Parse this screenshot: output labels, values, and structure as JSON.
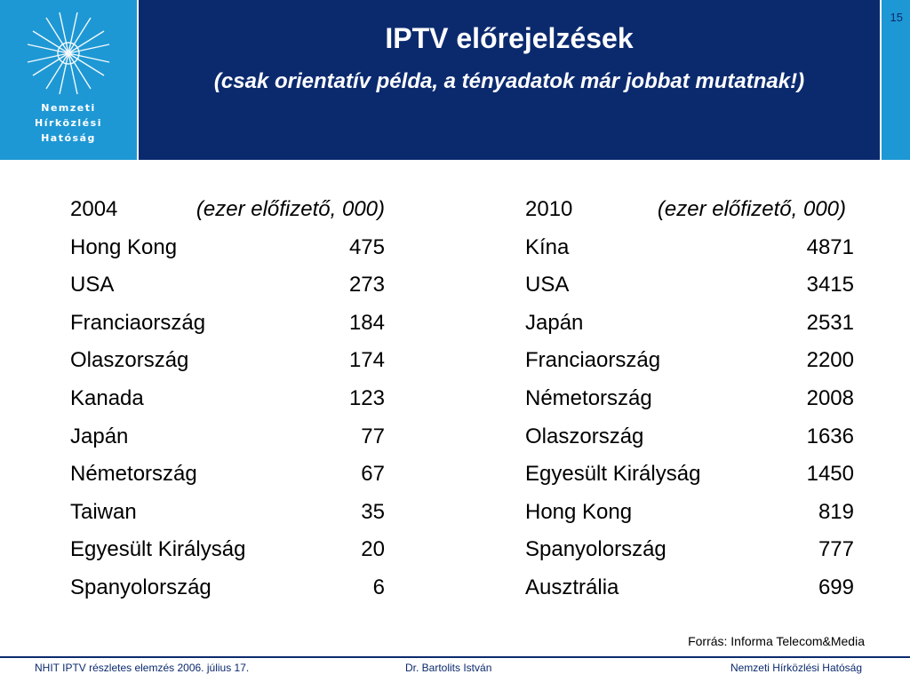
{
  "logo": {
    "lines": [
      "Nemzeti",
      "Hírközlési",
      "Hatóság"
    ],
    "accent": "#1e98d4"
  },
  "header": {
    "title": "IPTV előrejelzések",
    "subtitle": "(csak orientatív példa, a tényadatok már jobbat mutatnak!)",
    "slide_number": "15",
    "background": "#0b2a6e"
  },
  "tables": [
    {
      "year": "2004",
      "unit": "(ezer előfizető, 000)",
      "rows": [
        {
          "country": "Hong Kong",
          "value": "475"
        },
        {
          "country": "USA",
          "value": "273"
        },
        {
          "country": "Franciaország",
          "value": "184"
        },
        {
          "country": "Olaszország",
          "value": "174"
        },
        {
          "country": "Kanada",
          "value": "123"
        },
        {
          "country": "Japán",
          "value": "77"
        },
        {
          "country": "Németország",
          "value": "67"
        },
        {
          "country": "Taiwan",
          "value": "35"
        },
        {
          "country": "Egyesült Királyság",
          "value": "20"
        },
        {
          "country": "Spanyolország",
          "value": "6"
        }
      ]
    },
    {
      "year": "2010",
      "unit": "(ezer előfizető, 000)",
      "rows": [
        {
          "country": "Kína",
          "value": "4871"
        },
        {
          "country": "USA",
          "value": "3415"
        },
        {
          "country": "Japán",
          "value": "2531"
        },
        {
          "country": "Franciaország",
          "value": "2200"
        },
        {
          "country": "Németország",
          "value": "2008"
        },
        {
          "country": "Olaszország",
          "value": "1636"
        },
        {
          "country": "Egyesült Királyság",
          "value": "1450"
        },
        {
          "country": "Hong Kong",
          "value": "819"
        },
        {
          "country": "Spanyolország",
          "value": "777"
        },
        {
          "country": "Ausztrália",
          "value": "699"
        }
      ]
    }
  ],
  "source": "Forrás: Informa Telecom&Media",
  "footer": {
    "left": "NHIT  IPTV részletes elemzés 2006. július 17.",
    "center": "Dr. Bartolits István",
    "right": "Nemzeti Hírközlési Hatóság"
  }
}
